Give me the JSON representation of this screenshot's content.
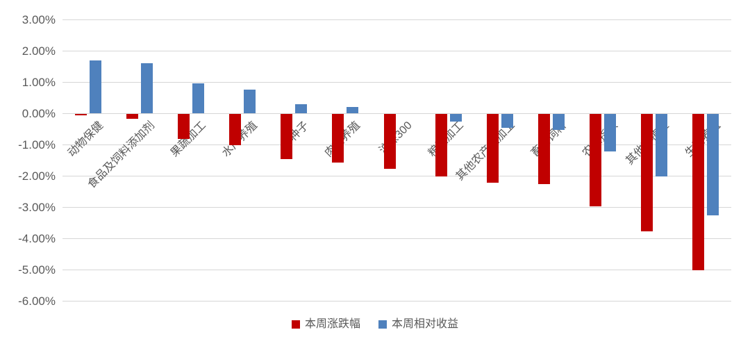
{
  "chart_data": {
    "type": "bar",
    "title": "",
    "xlabel": "",
    "ylabel": "",
    "categories": [
      "动物保健",
      "食品及饲料添加剂",
      "果蔬加工",
      "水产养殖",
      "种子",
      "肉鸡养殖",
      "沪深300",
      "粮油加工",
      "其他农产品加工",
      "畜禽饲料",
      "农业指数",
      "其他种植业",
      "生猪养殖"
    ],
    "series": [
      {
        "name": "本周涨跌幅",
        "color": "#c00000",
        "values": [
          -0.05,
          -0.15,
          -0.8,
          -1.0,
          -1.45,
          -1.55,
          -1.75,
          -2.0,
          -2.2,
          -2.25,
          -2.95,
          -3.75,
          -5.0
        ]
      },
      {
        "name": "本周相对收益",
        "color": "#4f81bd",
        "values": [
          1.7,
          1.6,
          0.95,
          0.75,
          0.3,
          0.2,
          0.0,
          -0.25,
          -0.45,
          -0.5,
          -1.2,
          -2.0,
          -3.25
        ]
      }
    ],
    "ylim": [
      -6,
      3
    ],
    "ytick_step": 1,
    "ytick_labels": [
      "3.00%",
      "2.00%",
      "1.00%",
      "0.00%",
      "-1.00%",
      "-2.00%",
      "-3.00%",
      "-4.00%",
      "-5.00%",
      "-6.00%"
    ],
    "grid": true,
    "legend_position": "bottom"
  },
  "styles": {
    "bar_red": "#c00000",
    "bar_blue": "#4f81bd",
    "grid_color": "#d6d6d6",
    "text_color": "#595959",
    "background": "#ffffff"
  }
}
